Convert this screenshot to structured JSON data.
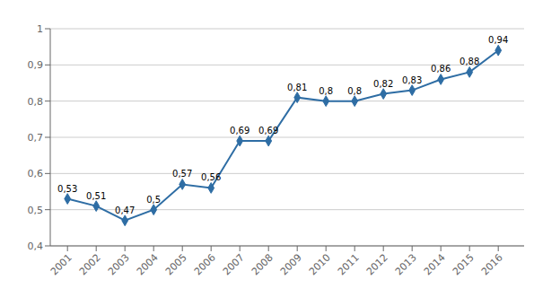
{
  "chart_data": {
    "type": "line",
    "x": [
      2001,
      2002,
      2003,
      2004,
      2005,
      2006,
      2007,
      2008,
      2009,
      2010,
      2011,
      2012,
      2013,
      2014,
      2015,
      2016
    ],
    "values": [
      0.53,
      0.51,
      0.47,
      0.5,
      0.57,
      0.56,
      0.69,
      0.69,
      0.81,
      0.8,
      0.8,
      0.82,
      0.83,
      0.86,
      0.88,
      0.94
    ],
    "value_labels": [
      "0,53",
      "0,51",
      "0,47",
      "0,5",
      "0,57",
      "0,56",
      "0,69",
      "0,69",
      "0,81",
      "0,8",
      "0,8",
      "0,82",
      "0,83",
      "0,86",
      "0,88",
      "0,94"
    ],
    "data_labels": true,
    "color": "#2E6DA4",
    "marker": "diamond",
    "xlim": [
      2000.4,
      2016.9
    ],
    "xticks": [
      2001,
      2002,
      2003,
      2004,
      2005,
      2006,
      2007,
      2008,
      2009,
      2010,
      2011,
      2012,
      2013,
      2014,
      2015,
      2016
    ],
    "ylim": [
      0.4,
      1.0
    ],
    "yticks": [
      {
        "value": 0.4,
        "label": "0,4"
      },
      {
        "value": 0.5,
        "label": "0,5"
      },
      {
        "value": 0.6,
        "label": "0,6"
      },
      {
        "value": 0.7,
        "label": "0,7"
      },
      {
        "value": 0.8,
        "label": "0,8"
      },
      {
        "value": 0.9,
        "label": "0,9"
      },
      1
    ],
    "grid": true
  }
}
